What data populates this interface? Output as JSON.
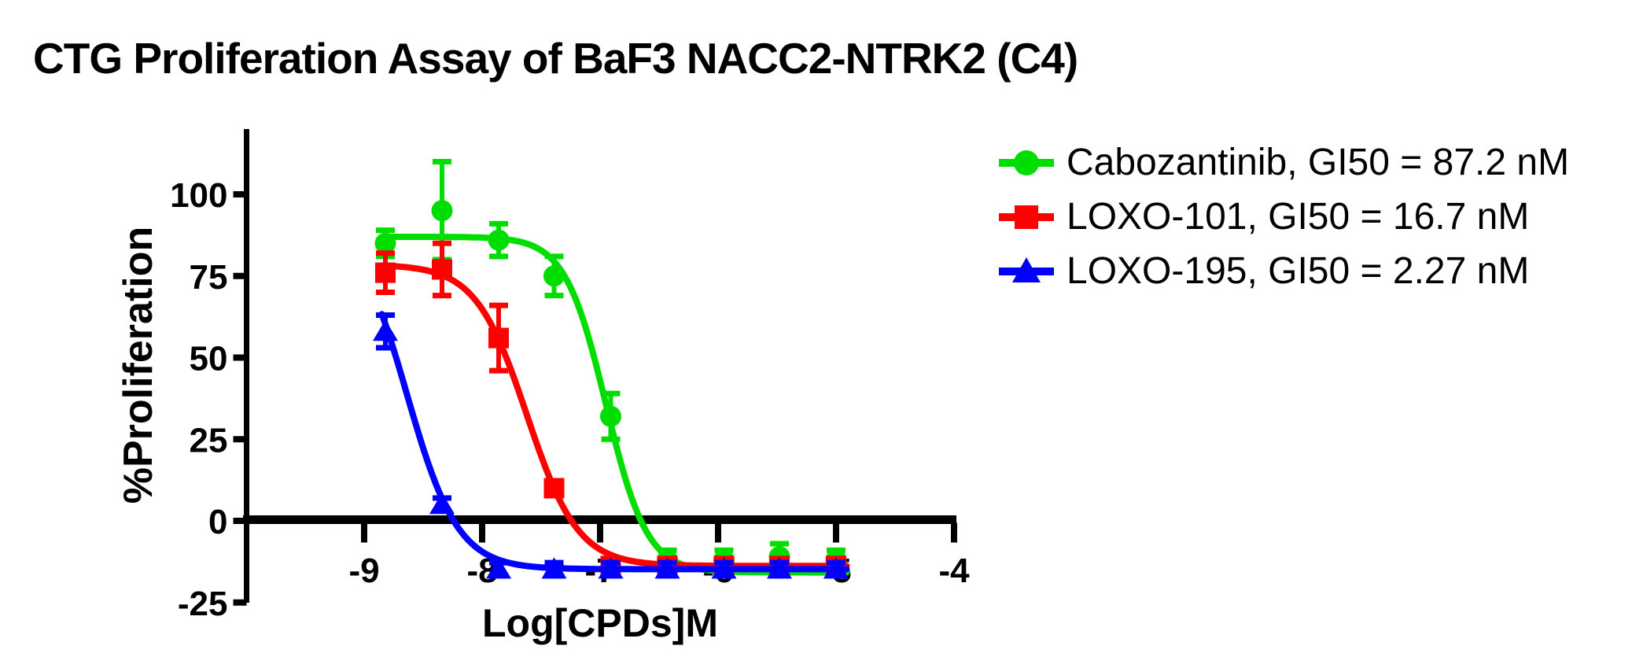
{
  "page": {
    "background": "#ffffff"
  },
  "chart_data": {
    "type": "line",
    "title": "CTG Proliferation Assay of BaF3 NACC2-NTRK2 (C4)",
    "xlabel": "Log[CPDs]M",
    "ylabel": "%Proliferation",
    "xlim": [
      -10,
      -4
    ],
    "ylim": [
      -25,
      124
    ],
    "x_ticks": [
      -9,
      -8,
      -7,
      -6,
      -5,
      -4
    ],
    "y_ticks": [
      100,
      75,
      50,
      25,
      0,
      -25
    ],
    "grid": false,
    "legend_position": "right",
    "axis_color": "#000000",
    "series": [
      {
        "name": "Cabozantinib",
        "legend_label": "Cabozantinib, GI50 = 87.2 nM",
        "gi50_nM": 87.2,
        "color": "#00DD00",
        "marker": "circle",
        "x": [
          -8.82,
          -8.34,
          -7.86,
          -7.39,
          -6.91,
          -6.43,
          -5.95,
          -5.48,
          -5.0
        ],
        "y": [
          85,
          95,
          86,
          75,
          32,
          -12,
          -12,
          -11,
          -12
        ],
        "sem": [
          4,
          15,
          5,
          6,
          7,
          3,
          3,
          4,
          3
        ],
        "fit": {
          "top": 87,
          "bottom": -15.8,
          "logec50": -6.95,
          "hill": 2.5
        }
      },
      {
        "name": "LOXO-101",
        "legend_label": "LOXO-101, GI50 = 16.7 nM",
        "gi50_nM": 16.7,
        "color": "#FF0000",
        "marker": "square",
        "x": [
          -8.82,
          -8.34,
          -7.86,
          -7.39,
          -6.91,
          -6.43,
          -5.95,
          -5.48,
          -5.0
        ],
        "y": [
          76,
          77,
          56,
          10,
          -13.8,
          -13.8,
          -13.8,
          -13.8,
          -13.8
        ],
        "sem": [
          6,
          8,
          10,
          2,
          2,
          2,
          2,
          2,
          2
        ],
        "fit": {
          "top": 78.5,
          "bottom": -13.8,
          "logec50": -7.62,
          "hill": 2.0
        }
      },
      {
        "name": "LOXO-195",
        "legend_label": "LOXO-195, GI50 = 2.27 nM",
        "gi50_nM": 2.27,
        "color": "#0000FF",
        "marker": "triangle",
        "x": [
          -8.82,
          -8.34,
          -7.86,
          -7.39,
          -6.91,
          -6.43,
          -5.95,
          -5.48,
          -5.0
        ],
        "y": [
          58,
          5,
          -14.8,
          -14.8,
          -14.8,
          -14.8,
          -14.8,
          -14.8,
          -14.8
        ],
        "sem": [
          5,
          2,
          2,
          2,
          2,
          2,
          2,
          2,
          2
        ],
        "fit": {
          "top": 93,
          "bottom": -14.8,
          "logec50": -8.64,
          "hill": 2.0
        }
      }
    ]
  }
}
